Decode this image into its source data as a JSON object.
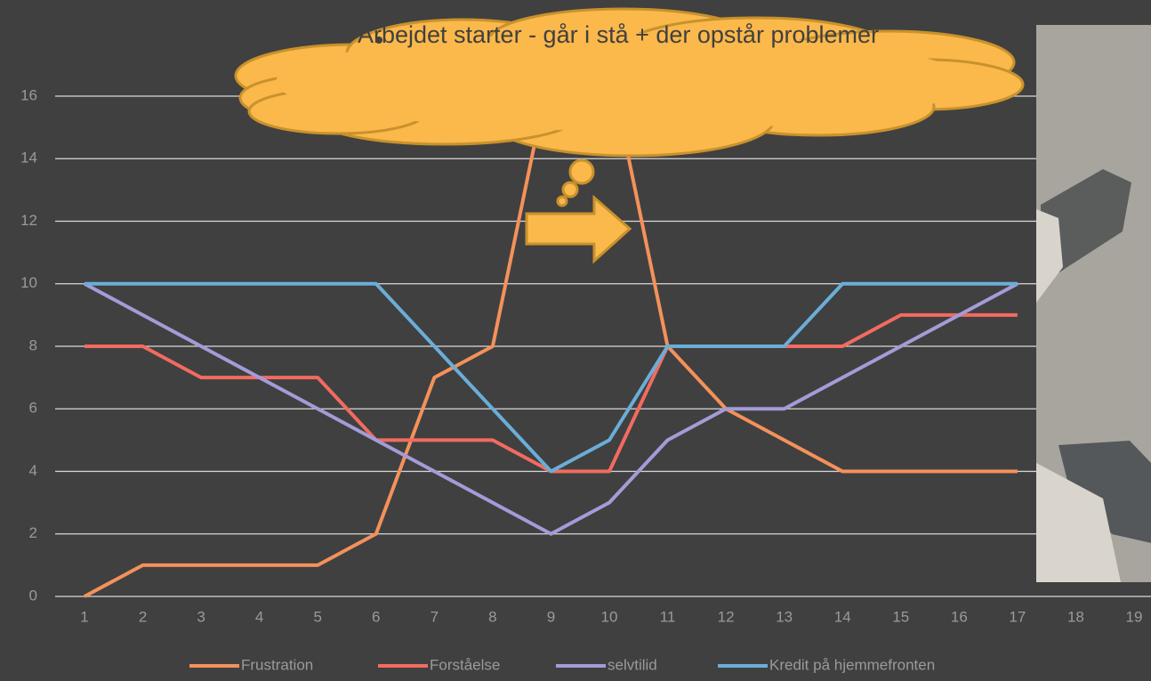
{
  "chart_data": {
    "type": "line",
    "categories": [
      "1",
      "2",
      "3",
      "4",
      "5",
      "6",
      "7",
      "8",
      "9",
      "10",
      "11",
      "12",
      "13",
      "14",
      "15",
      "16",
      "17",
      "18",
      "19"
    ],
    "series": [
      {
        "name": "Frustration",
        "color": "#f4915b",
        "values": [
          0,
          1,
          1,
          1,
          1,
          2,
          7,
          8,
          17,
          17,
          8,
          6,
          5,
          4,
          4,
          4,
          4,
          null,
          null
        ]
      },
      {
        "name": "Forståelse",
        "color": "#f26b60",
        "values": [
          8,
          8,
          7,
          7,
          7,
          5,
          5,
          5,
          4,
          4,
          8,
          8,
          8,
          8,
          9,
          9,
          9,
          null,
          null
        ]
      },
      {
        "name": "selvtilid",
        "color": "#a29cd8",
        "values": [
          10,
          9,
          8,
          7,
          6,
          5,
          4,
          3,
          2,
          3,
          5,
          6,
          6,
          7,
          8,
          9,
          10,
          null,
          null
        ]
      },
      {
        "name": "Kredit på hjemmefronten",
        "color": "#6aaed8",
        "values": [
          10,
          10,
          10,
          10,
          10,
          10,
          8,
          6,
          4,
          5,
          8,
          8,
          8,
          10,
          10,
          10,
          10,
          null,
          null
        ]
      }
    ],
    "ylim": [
      0,
      17
    ],
    "yticks": [
      0,
      2,
      4,
      6,
      8,
      10,
      12,
      14,
      16
    ],
    "grid": true,
    "annotation": "Arbejdet starter - går i stå + der opstår problemer"
  }
}
